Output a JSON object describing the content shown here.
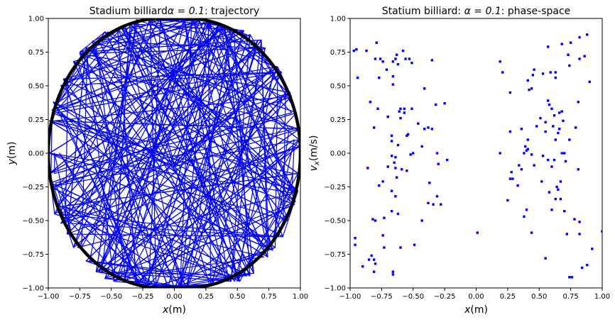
{
  "chart_data": [
    {
      "type": "line",
      "title": "Stadium billiardα = 0.1: trajectory",
      "title_parts": {
        "prefix": "Stadium billiard",
        "math": "α = 0.1",
        "suffix": ": trajectory"
      },
      "xlabel": "x(m)",
      "xlabel_parts": {
        "var": "x",
        "unit": "(m)"
      },
      "ylabel": "y(m)",
      "ylabel_parts": {
        "var": "y",
        "unit": "(m)"
      },
      "xlim": [
        -1,
        1
      ],
      "ylim": [
        -1,
        1
      ],
      "xticks": [
        "−1.00",
        "−0.75",
        "−0.50",
        "−0.25",
        "0.00",
        "0.25",
        "0.50",
        "0.75",
        "1.00"
      ],
      "yticks": [
        "−1.00",
        "−0.75",
        "−0.50",
        "−0.25",
        "0.00",
        "0.25",
        "0.50",
        "0.75",
        "1.00"
      ],
      "grid": false,
      "colors": {
        "trajectory": "#0000ff",
        "boundary": "#000000"
      },
      "trajectory_points": [
        [
          0.0,
          -0.1
        ],
        [
          0.69,
          0.84
        ],
        [
          -0.75,
          0.75
        ],
        [
          0.52,
          -0.95
        ],
        [
          -0.3,
          0.99
        ],
        [
          -0.62,
          -0.88
        ],
        [
          0.99,
          0.18
        ],
        [
          -0.99,
          0.24
        ],
        [
          0.74,
          -0.77
        ],
        [
          -0.12,
          0.99
        ],
        [
          -0.95,
          -0.45
        ],
        [
          0.82,
          0.64
        ],
        [
          0.1,
          -1.0
        ],
        [
          -0.8,
          0.68
        ],
        [
          0.98,
          -0.28
        ],
        [
          -0.42,
          0.93
        ],
        [
          0.6,
          -0.91
        ],
        [
          -0.98,
          -0.22
        ],
        [
          0.93,
          0.42
        ],
        [
          -0.55,
          -0.93
        ],
        [
          0.2,
          0.98
        ],
        [
          0.86,
          -0.62
        ],
        [
          -0.97,
          0.32
        ],
        [
          0.47,
          0.92
        ],
        [
          -0.22,
          -0.98
        ],
        [
          0.38,
          0.95
        ],
        [
          0.96,
          -0.36
        ],
        [
          -0.7,
          0.78
        ],
        [
          -0.85,
          -0.6
        ],
        [
          0.66,
          0.8
        ],
        [
          0.05,
          -0.99
        ],
        [
          -0.96,
          0.38
        ],
        [
          0.9,
          -0.5
        ],
        [
          -0.35,
          0.96
        ],
        [
          -0.48,
          -0.95
        ],
        [
          0.99,
          0.05
        ],
        [
          -0.9,
          -0.52
        ],
        [
          0.28,
          0.97
        ],
        [
          0.78,
          -0.72
        ],
        [
          -0.99,
          0.0
        ],
        [
          0.55,
          0.91
        ],
        [
          -0.05,
          -0.99
        ],
        [
          -0.75,
          0.74
        ],
        [
          0.92,
          0.45
        ],
        [
          -0.6,
          -0.88
        ],
        [
          0.15,
          0.99
        ],
        [
          0.97,
          -0.3
        ],
        [
          -0.88,
          0.55
        ],
        [
          0.3,
          -0.97
        ],
        [
          0.72,
          0.78
        ],
        [
          -0.99,
          -0.15
        ],
        [
          0.4,
          0.94
        ],
        [
          0.63,
          -0.89
        ],
        [
          -0.45,
          0.92
        ],
        [
          -0.3,
          -0.97
        ],
        [
          0.99,
          0.1
        ],
        [
          -0.2,
          0.98
        ],
        [
          -0.8,
          -0.7
        ],
        [
          0.85,
          0.6
        ],
        [
          0.0,
          -1.0
        ],
        [
          -0.65,
          0.83
        ],
        [
          0.97,
          0.3
        ],
        [
          -0.98,
          -0.25
        ],
        [
          0.5,
          -0.93
        ],
        [
          0.08,
          0.99
        ],
        [
          -0.9,
          0.5
        ],
        [
          0.8,
          -0.7
        ],
        [
          -0.15,
          -0.99
        ],
        [
          0.6,
          0.88
        ],
        [
          -0.97,
          0.3
        ],
        [
          0.95,
          -0.38
        ],
        [
          -0.4,
          -0.95
        ],
        [
          0.25,
          0.97
        ],
        [
          0.82,
          0.62
        ],
        [
          -0.7,
          -0.8
        ],
        [
          0.45,
          -0.95
        ],
        [
          -0.55,
          0.9
        ],
        [
          0.98,
          -0.15
        ],
        [
          -0.93,
          -0.4
        ],
        [
          0.35,
          0.95
        ],
        [
          0.0,
          -0.1
        ]
      ],
      "boundary": {
        "shape": "stadium",
        "alpha": 0.1
      }
    },
    {
      "type": "scatter",
      "title": "Statium billiard: α = 0.1: phase-space",
      "title_parts": {
        "prefix": "Statium billiard: ",
        "math": "α = 0.1",
        "suffix": ": phase-space"
      },
      "xlabel": "x(m)",
      "xlabel_parts": {
        "var": "x",
        "unit": "(m)"
      },
      "ylabel": "v_x(m/s)",
      "ylabel_parts": {
        "var": "v",
        "sub": "x",
        "unit": "(m/s)"
      },
      "xlim": [
        -1,
        1
      ],
      "ylim": [
        -1,
        1
      ],
      "xticks": [
        "−1.00",
        "−0.75",
        "−0.50",
        "−0.25",
        "0.00",
        "0.25",
        "0.50",
        "0.75",
        "1.00"
      ],
      "yticks": [
        "−1.00",
        "−0.75",
        "−0.50",
        "−0.25",
        "0.00",
        "0.25",
        "0.50",
        "0.75",
        "1.00"
      ],
      "grid": false,
      "colors": {
        "points": "#0000ff"
      },
      "points": [
        [
          -0.95,
          0.77
        ],
        [
          -0.97,
          0.76
        ],
        [
          -0.87,
          0.76
        ],
        [
          -0.79,
          0.82
        ],
        [
          -0.8,
          0.7
        ],
        [
          -0.76,
          0.7
        ],
        [
          -0.74,
          0.68
        ],
        [
          -0.71,
          0.62
        ],
        [
          -0.66,
          0.68
        ],
        [
          -0.64,
          0.7
        ],
        [
          -0.63,
          0.73
        ],
        [
          -0.58,
          0.76
        ],
        [
          -0.56,
          0.7
        ],
        [
          -0.53,
          0.7
        ],
        [
          -0.51,
          0.67
        ],
        [
          -0.35,
          0.69
        ],
        [
          -0.62,
          0.66
        ],
        [
          -0.66,
          0.57
        ],
        [
          -0.66,
          0.51
        ],
        [
          -0.94,
          0.56
        ],
        [
          -0.77,
          0.56
        ],
        [
          -0.41,
          0.48
        ],
        [
          -0.84,
          0.38
        ],
        [
          -0.78,
          0.33
        ],
        [
          -0.6,
          0.33
        ],
        [
          -0.57,
          0.33
        ],
        [
          -0.51,
          0.33
        ],
        [
          -0.61,
          0.31
        ],
        [
          -0.57,
          0.3
        ],
        [
          -0.32,
          0.36
        ],
        [
          -0.25,
          0.37
        ],
        [
          -0.7,
          0.27
        ],
        [
          -0.6,
          0.26
        ],
        [
          -0.46,
          0.22
        ],
        [
          -0.81,
          0.19
        ],
        [
          -0.38,
          0.19
        ],
        [
          -0.41,
          0.18
        ],
        [
          -0.35,
          0.18
        ],
        [
          -0.54,
          0.14
        ],
        [
          -0.55,
          0.13
        ],
        [
          -0.67,
          0.13
        ],
        [
          -0.67,
          0.09
        ],
        [
          -0.62,
          0.06
        ],
        [
          -0.43,
          0.05
        ],
        [
          -0.52,
          -0.01
        ],
        [
          -0.5,
          0.0
        ],
        [
          -0.31,
          0.0
        ],
        [
          -0.67,
          -0.02
        ],
        [
          -0.64,
          -0.03
        ],
        [
          -0.65,
          -0.07
        ],
        [
          -0.3,
          -0.08
        ],
        [
          -0.7,
          -0.1
        ],
        [
          -0.64,
          -0.11
        ],
        [
          -0.59,
          -0.12
        ],
        [
          -0.55,
          -0.13
        ],
        [
          -0.23,
          -0.05
        ],
        [
          -0.86,
          -0.11
        ],
        [
          -0.63,
          -0.18
        ],
        [
          -0.74,
          -0.21
        ],
        [
          -0.77,
          -0.24
        ],
        [
          -0.37,
          -0.22
        ],
        [
          -0.67,
          -0.28
        ],
        [
          -0.64,
          -0.32
        ],
        [
          -0.38,
          -0.37
        ],
        [
          -0.34,
          -0.38
        ],
        [
          -0.31,
          -0.32
        ],
        [
          -0.28,
          -0.38
        ],
        [
          -0.43,
          -0.5
        ],
        [
          -0.67,
          -0.43
        ],
        [
          -0.62,
          -0.45
        ],
        [
          -0.73,
          -0.48
        ],
        [
          -0.8,
          -0.5
        ],
        [
          -0.82,
          -0.49
        ],
        [
          -0.74,
          -0.61
        ],
        [
          -0.6,
          -0.7
        ],
        [
          -0.49,
          -0.68
        ],
        [
          -0.73,
          -0.7
        ],
        [
          -0.96,
          -0.63
        ],
        [
          -0.96,
          -0.68
        ],
        [
          -0.83,
          -0.76
        ],
        [
          -0.81,
          -0.79
        ],
        [
          -0.85,
          -0.79
        ],
        [
          -0.8,
          -0.82
        ],
        [
          -0.9,
          -0.84
        ],
        [
          -0.81,
          -0.88
        ],
        [
          -0.66,
          -0.88
        ],
        [
          -0.66,
          -0.9
        ],
        [
          0.01,
          -0.59
        ],
        [
          0.19,
          0.68
        ],
        [
          0.21,
          0.6
        ],
        [
          0.57,
          0.79
        ],
        [
          0.68,
          0.81
        ],
        [
          0.75,
          0.82
        ],
        [
          0.82,
          0.86
        ],
        [
          0.88,
          0.88
        ],
        [
          0.82,
          0.7
        ],
        [
          0.73,
          0.73
        ],
        [
          0.86,
          0.72
        ],
        [
          0.74,
          0.65
        ],
        [
          0.63,
          0.6
        ],
        [
          0.59,
          0.6
        ],
        [
          0.46,
          0.62
        ],
        [
          0.45,
          0.58
        ],
        [
          0.41,
          0.54
        ],
        [
          0.53,
          0.59
        ],
        [
          0.63,
          0.56
        ],
        [
          0.9,
          0.53
        ],
        [
          0.44,
          0.48
        ],
        [
          0.42,
          0.47
        ],
        [
          0.81,
          0.38
        ],
        [
          0.57,
          0.39
        ],
        [
          0.58,
          0.36
        ],
        [
          0.6,
          0.33
        ],
        [
          0.27,
          0.45
        ],
        [
          0.62,
          0.28
        ],
        [
          0.66,
          0.3
        ],
        [
          0.68,
          0.31
        ],
        [
          0.51,
          0.26
        ],
        [
          0.55,
          0.23
        ],
        [
          0.61,
          0.2
        ],
        [
          0.69,
          0.24
        ],
        [
          0.65,
          0.15
        ],
        [
          0.74,
          0.1
        ],
        [
          0.79,
          0.19
        ],
        [
          0.48,
          0.2
        ],
        [
          0.36,
          0.18
        ],
        [
          0.27,
          0.16
        ],
        [
          0.41,
          0.1
        ],
        [
          0.39,
          0.05
        ],
        [
          0.41,
          0.03
        ],
        [
          0.66,
          0.18
        ],
        [
          0.55,
          0.16
        ],
        [
          0.63,
          0.1
        ],
        [
          0.4,
          0.02
        ],
        [
          0.38,
          0.0
        ],
        [
          0.44,
          -0.01
        ],
        [
          0.53,
          -0.02
        ],
        [
          0.57,
          -0.05
        ],
        [
          0.62,
          -0.05
        ],
        [
          0.68,
          0.0
        ],
        [
          0.7,
          0.0
        ],
        [
          0.71,
          -0.06
        ],
        [
          0.19,
          0.0
        ],
        [
          0.34,
          -0.09
        ],
        [
          0.46,
          -0.09
        ],
        [
          0.6,
          -0.1
        ],
        [
          0.28,
          -0.14
        ],
        [
          0.27,
          -0.19
        ],
        [
          0.29,
          -0.19
        ],
        [
          0.36,
          -0.12
        ],
        [
          0.33,
          -0.24
        ],
        [
          0.52,
          -0.21
        ],
        [
          0.67,
          -0.21
        ],
        [
          0.64,
          -0.25
        ],
        [
          0.65,
          -0.27
        ],
        [
          0.81,
          -0.12
        ],
        [
          0.58,
          -0.29
        ],
        [
          0.63,
          -0.34
        ],
        [
          0.67,
          -0.34
        ],
        [
          0.4,
          -0.42
        ],
        [
          0.38,
          -0.47
        ],
        [
          0.25,
          -0.35
        ],
        [
          0.6,
          -0.42
        ],
        [
          0.7,
          -0.43
        ],
        [
          0.78,
          -0.49
        ],
        [
          0.82,
          -0.51
        ],
        [
          0.44,
          -0.59
        ],
        [
          0.72,
          -0.6
        ],
        [
          0.82,
          -0.6
        ],
        [
          1.0,
          -0.58
        ],
        [
          0.55,
          -0.78
        ],
        [
          0.92,
          -0.71
        ],
        [
          0.84,
          -0.85
        ],
        [
          0.88,
          -0.83
        ],
        [
          0.74,
          -0.92
        ],
        [
          0.76,
          -0.92
        ]
      ]
    }
  ]
}
